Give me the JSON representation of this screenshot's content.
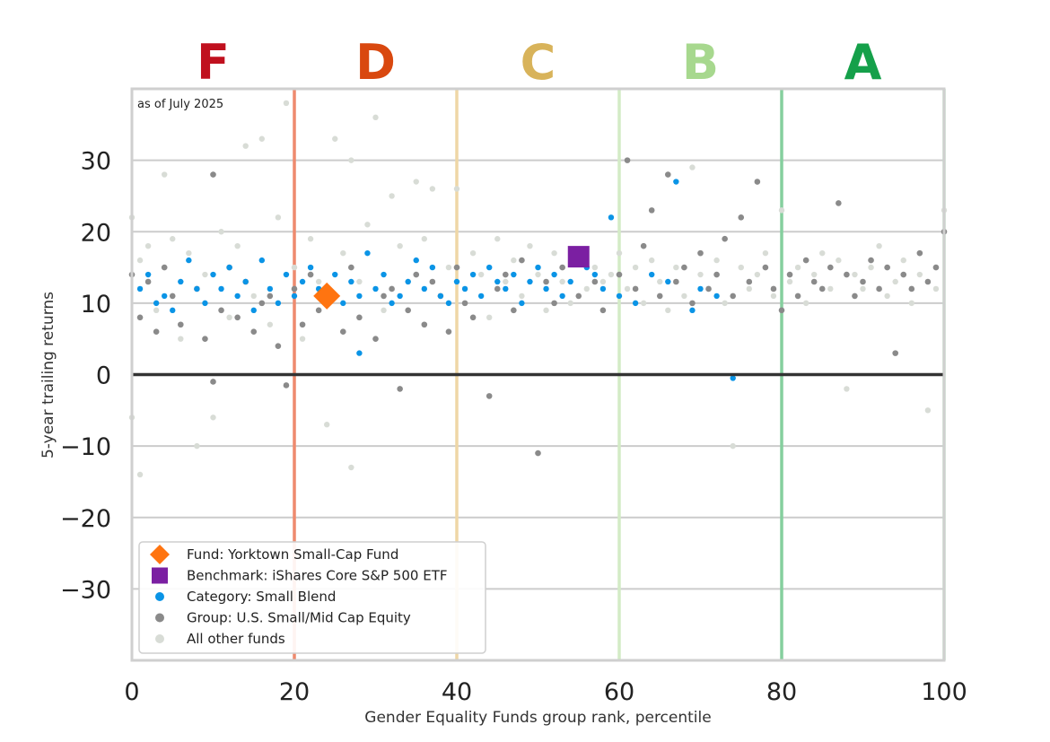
{
  "chart_data": {
    "type": "scatter",
    "note": "as of July 2025",
    "xlabel": "Gender Equality Funds group rank, percentile",
    "ylabel": "5-year trailing returns",
    "xlim": [
      0,
      100
    ],
    "ylim": [
      -40,
      40
    ],
    "xticks": [
      0,
      20,
      40,
      60,
      80,
      100
    ],
    "yticks": [
      -30,
      -20,
      -10,
      0,
      10,
      20,
      30
    ],
    "grid": "horizontal",
    "zero_line": 0,
    "legend_position": "bottom-left",
    "grades": [
      {
        "label": "F",
        "x": 10,
        "color": "#c0101e"
      },
      {
        "label": "D",
        "x": 30,
        "color": "#d9480f"
      },
      {
        "label": "C",
        "x": 50,
        "color": "#d8b35a"
      },
      {
        "label": "B",
        "x": 70,
        "color": "#a7d88e"
      },
      {
        "label": "A",
        "x": 90,
        "color": "#15a04a"
      }
    ],
    "grade_boundaries": [
      {
        "x": 20,
        "color": "#ee8a6e"
      },
      {
        "x": 40,
        "color": "#efd7a6"
      },
      {
        "x": 60,
        "color": "#d3ebc6"
      },
      {
        "x": 80,
        "color": "#85cf9e"
      },
      {
        "x": 100,
        "color": "#b9e3c6"
      }
    ],
    "series": [
      {
        "name": "Fund: Yorktown Small-Cap Fund",
        "marker": "diamond",
        "color": "#ff7410",
        "points": [
          [
            24,
            11
          ]
        ]
      },
      {
        "name": "Benchmark: iShares Core S&P 500 ETF",
        "marker": "square",
        "color": "#7b1fa2",
        "points": [
          [
            55,
            16.5
          ]
        ]
      },
      {
        "name": "Category: Small Blend",
        "marker": "dot",
        "color": "#0a94e6",
        "points": [
          [
            1,
            12
          ],
          [
            2,
            14
          ],
          [
            3,
            10
          ],
          [
            4,
            11
          ],
          [
            5,
            9
          ],
          [
            6,
            13
          ],
          [
            7,
            16
          ],
          [
            8,
            12
          ],
          [
            9,
            10
          ],
          [
            10,
            14
          ],
          [
            11,
            12
          ],
          [
            12,
            15
          ],
          [
            13,
            11
          ],
          [
            14,
            13
          ],
          [
            15,
            9
          ],
          [
            16,
            16
          ],
          [
            17,
            12
          ],
          [
            18,
            10
          ],
          [
            19,
            14
          ],
          [
            20,
            11
          ],
          [
            21,
            13
          ],
          [
            22,
            15
          ],
          [
            23,
            12
          ],
          [
            25,
            14
          ],
          [
            26,
            10
          ],
          [
            27,
            13
          ],
          [
            28,
            3
          ],
          [
            28,
            11
          ],
          [
            29,
            17
          ],
          [
            30,
            12
          ],
          [
            31,
            14
          ],
          [
            32,
            10
          ],
          [
            33,
            11
          ],
          [
            34,
            13
          ],
          [
            35,
            16
          ],
          [
            36,
            12
          ],
          [
            37,
            15
          ],
          [
            38,
            11
          ],
          [
            39,
            10
          ],
          [
            40,
            13
          ],
          [
            41,
            12
          ],
          [
            42,
            14
          ],
          [
            43,
            11
          ],
          [
            44,
            15
          ],
          [
            45,
            13
          ],
          [
            46,
            12
          ],
          [
            47,
            14
          ],
          [
            48,
            10
          ],
          [
            49,
            13
          ],
          [
            50,
            15
          ],
          [
            51,
            12
          ],
          [
            52,
            14
          ],
          [
            53,
            11
          ],
          [
            54,
            13
          ],
          [
            56,
            15
          ],
          [
            57,
            14
          ],
          [
            58,
            12
          ],
          [
            59,
            22
          ],
          [
            60,
            11
          ],
          [
            62,
            10
          ],
          [
            64,
            14
          ],
          [
            66,
            13
          ],
          [
            67,
            27
          ],
          [
            69,
            9
          ],
          [
            70,
            12
          ],
          [
            72,
            11
          ],
          [
            74,
            -0.5
          ]
        ]
      },
      {
        "name": "Group: U.S. Small/Mid Cap Equity",
        "marker": "dot",
        "color": "#8a8a8a",
        "points": [
          [
            0,
            14
          ],
          [
            1,
            8
          ],
          [
            2,
            13
          ],
          [
            3,
            6
          ],
          [
            4,
            15
          ],
          [
            5,
            11
          ],
          [
            6,
            7
          ],
          [
            8,
            12
          ],
          [
            9,
            5
          ],
          [
            10,
            28
          ],
          [
            10,
            -1
          ],
          [
            11,
            9
          ],
          [
            12,
            15
          ],
          [
            13,
            8
          ],
          [
            14,
            13
          ],
          [
            15,
            6
          ],
          [
            16,
            10
          ],
          [
            17,
            11
          ],
          [
            18,
            4
          ],
          [
            19,
            -1.5
          ],
          [
            20,
            12
          ],
          [
            21,
            7
          ],
          [
            22,
            14
          ],
          [
            23,
            9
          ],
          [
            26,
            6
          ],
          [
            27,
            15
          ],
          [
            28,
            8
          ],
          [
            30,
            5
          ],
          [
            31,
            11
          ],
          [
            32,
            12
          ],
          [
            33,
            -2
          ],
          [
            34,
            9
          ],
          [
            35,
            14
          ],
          [
            36,
            7
          ],
          [
            37,
            13
          ],
          [
            38,
            11
          ],
          [
            39,
            6
          ],
          [
            40,
            15
          ],
          [
            41,
            10
          ],
          [
            42,
            8
          ],
          [
            44,
            -3
          ],
          [
            45,
            12
          ],
          [
            46,
            14
          ],
          [
            47,
            9
          ],
          [
            48,
            16
          ],
          [
            50,
            -11
          ],
          [
            51,
            13
          ],
          [
            52,
            10
          ],
          [
            53,
            15
          ],
          [
            55,
            11
          ],
          [
            57,
            13
          ],
          [
            58,
            9
          ],
          [
            60,
            14
          ],
          [
            61,
            30
          ],
          [
            62,
            12
          ],
          [
            63,
            18
          ],
          [
            64,
            23
          ],
          [
            65,
            11
          ],
          [
            66,
            28
          ],
          [
            67,
            13
          ],
          [
            68,
            15
          ],
          [
            69,
            10
          ],
          [
            70,
            17
          ],
          [
            71,
            12
          ],
          [
            72,
            14
          ],
          [
            73,
            19
          ],
          [
            74,
            11
          ],
          [
            75,
            22
          ],
          [
            76,
            13
          ],
          [
            77,
            27
          ],
          [
            78,
            15
          ],
          [
            79,
            12
          ],
          [
            80,
            9
          ],
          [
            81,
            14
          ],
          [
            82,
            11
          ],
          [
            83,
            16
          ],
          [
            84,
            13
          ],
          [
            85,
            12
          ],
          [
            86,
            15
          ],
          [
            87,
            24
          ],
          [
            88,
            14
          ],
          [
            89,
            11
          ],
          [
            90,
            13
          ],
          [
            91,
            16
          ],
          [
            92,
            12
          ],
          [
            93,
            15
          ],
          [
            94,
            3
          ],
          [
            95,
            14
          ],
          [
            96,
            12
          ],
          [
            97,
            17
          ],
          [
            98,
            13
          ],
          [
            99,
            15
          ],
          [
            100,
            20
          ]
        ]
      },
      {
        "name": "All other funds",
        "marker": "dot",
        "color": "#d8dcd6",
        "points": [
          [
            0,
            22
          ],
          [
            0,
            -6
          ],
          [
            1,
            -14
          ],
          [
            1,
            16
          ],
          [
            2,
            18
          ],
          [
            3,
            9
          ],
          [
            4,
            28
          ],
          [
            5,
            19
          ],
          [
            6,
            5
          ],
          [
            7,
            17
          ],
          [
            8,
            -10
          ],
          [
            9,
            14
          ],
          [
            10,
            -6
          ],
          [
            11,
            20
          ],
          [
            12,
            8
          ],
          [
            13,
            18
          ],
          [
            14,
            32
          ],
          [
            15,
            11
          ],
          [
            16,
            33
          ],
          [
            17,
            7
          ],
          [
            18,
            22
          ],
          [
            19,
            38
          ],
          [
            20,
            15
          ],
          [
            21,
            5
          ],
          [
            22,
            19
          ],
          [
            23,
            13
          ],
          [
            24,
            -7
          ],
          [
            25,
            33
          ],
          [
            26,
            17
          ],
          [
            27,
            -13
          ],
          [
            27,
            30
          ],
          [
            28,
            13
          ],
          [
            29,
            21
          ],
          [
            30,
            36
          ],
          [
            31,
            9
          ],
          [
            32,
            25
          ],
          [
            33,
            18
          ],
          [
            34,
            13
          ],
          [
            35,
            27
          ],
          [
            36,
            19
          ],
          [
            37,
            26
          ],
          [
            38,
            11
          ],
          [
            39,
            15
          ],
          [
            40,
            26
          ],
          [
            41,
            12
          ],
          [
            42,
            17
          ],
          [
            43,
            14
          ],
          [
            44,
            8
          ],
          [
            45,
            19
          ],
          [
            46,
            13
          ],
          [
            47,
            16
          ],
          [
            48,
            11
          ],
          [
            49,
            18
          ],
          [
            50,
            14
          ],
          [
            51,
            9
          ],
          [
            52,
            17
          ],
          [
            53,
            13
          ],
          [
            54,
            10
          ],
          [
            55,
            16
          ],
          [
            56,
            12
          ],
          [
            57,
            15
          ],
          [
            58,
            13
          ],
          [
            59,
            14
          ],
          [
            60,
            17
          ],
          [
            61,
            12
          ],
          [
            62,
            15
          ],
          [
            63,
            10
          ],
          [
            64,
            16
          ],
          [
            65,
            13
          ],
          [
            66,
            9
          ],
          [
            67,
            15
          ],
          [
            68,
            11
          ],
          [
            69,
            29
          ],
          [
            70,
            14
          ],
          [
            71,
            12
          ],
          [
            72,
            16
          ],
          [
            73,
            10
          ],
          [
            74,
            -10
          ],
          [
            75,
            15
          ],
          [
            76,
            12
          ],
          [
            77,
            14
          ],
          [
            78,
            17
          ],
          [
            79,
            11
          ],
          [
            80,
            23
          ],
          [
            81,
            13
          ],
          [
            82,
            15
          ],
          [
            83,
            10
          ],
          [
            84,
            14
          ],
          [
            85,
            17
          ],
          [
            86,
            12
          ],
          [
            87,
            16
          ],
          [
            88,
            -2
          ],
          [
            89,
            14
          ],
          [
            90,
            12
          ],
          [
            91,
            15
          ],
          [
            92,
            18
          ],
          [
            93,
            11
          ],
          [
            94,
            13
          ],
          [
            95,
            16
          ],
          [
            96,
            10
          ],
          [
            97,
            14
          ],
          [
            98,
            -5
          ],
          [
            99,
            12
          ],
          [
            100,
            23
          ]
        ]
      }
    ]
  }
}
